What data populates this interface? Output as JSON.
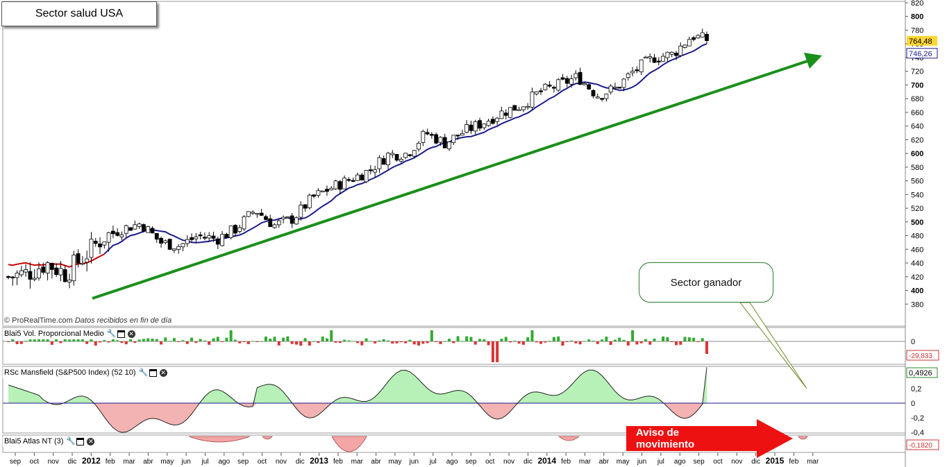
{
  "title": "Sector salud USA",
  "watermark": {
    "brand": "© ProRealTime.com",
    "note": "Datos recibidos en fin de día"
  },
  "callout": "Sector ganador",
  "alert_label": "Aviso de movimiento",
  "colors": {
    "up_candle": "#ffffff",
    "down_candle": "#000000",
    "ma_blue": "#1a1a8c",
    "ma_red": "#cc0000",
    "trend_green": "#1a8f1a",
    "hist_green": "#33aa33",
    "hist_red": "#dd3333",
    "area_green": "#aaeeaa",
    "area_red": "#f2a6a6",
    "price_badge": "#ffd633",
    "alert_red": "#ee1111"
  },
  "panels": {
    "volume": {
      "label": "Blai5 Vol. Proporcional Medio",
      "last_value": "-29,833",
      "zero_label": "0"
    },
    "mansfield": {
      "label": "RSc Mansfield (S&P500 Index) (52 10)",
      "last_value": "0,4926",
      "ticks": [
        "0,2",
        "0",
        "-0,2",
        "-0,4"
      ]
    },
    "atlas": {
      "label": "Blai5 Atlas NT (3)",
      "last_value": "-0,1820"
    }
  },
  "chart_data": {
    "type": "candlestick",
    "title": "Sector salud USA",
    "y_axis": {
      "min": 360,
      "max": 820,
      "ticks": [
        380,
        400,
        420,
        440,
        460,
        480,
        500,
        520,
        540,
        560,
        580,
        600,
        620,
        640,
        660,
        680,
        700,
        720,
        740,
        760,
        780,
        800,
        820
      ]
    },
    "price_labels": {
      "last": "764,48",
      "ma": "746,26"
    },
    "x_axis": {
      "labels": [
        "sep",
        "oct",
        "nov",
        "dic",
        "2012",
        "feb",
        "mar",
        "abr",
        "may",
        "jun",
        "jul",
        "ago",
        "sep",
        "oct",
        "nov",
        "dic",
        "2013",
        "feb",
        "mar",
        "abr",
        "may",
        "jun",
        "jul",
        "ago",
        "sep",
        "oct",
        "nov",
        "dic",
        "2014",
        "feb",
        "mar",
        "abr",
        "may",
        "jun",
        "jul",
        "ago",
        "sep",
        "oct",
        "nov",
        "dic",
        "2015",
        "feb",
        "mar"
      ],
      "bold": [
        "2012",
        "2013",
        "2014",
        "2015"
      ]
    },
    "close_path": [
      {
        "month": "sep 2011",
        "close": 420
      },
      {
        "month": "oct 2011",
        "close": 425
      },
      {
        "month": "nov 2011",
        "close": 440
      },
      {
        "month": "dic 2011",
        "close": 425
      },
      {
        "month": "ene 2012",
        "close": 450
      },
      {
        "month": "feb 2012",
        "close": 478
      },
      {
        "month": "mar 2012",
        "close": 490
      },
      {
        "month": "abr 2012",
        "close": 498
      },
      {
        "month": "may 2012",
        "close": 470
      },
      {
        "month": "jun 2012",
        "close": 465
      },
      {
        "month": "jul 2012",
        "close": 480
      },
      {
        "month": "ago 2012",
        "close": 475
      },
      {
        "month": "sep 2012",
        "close": 490
      },
      {
        "month": "oct 2012",
        "close": 518
      },
      {
        "month": "nov 2012",
        "close": 495
      },
      {
        "month": "dic 2012",
        "close": 505
      },
      {
        "month": "ene 2013",
        "close": 535
      },
      {
        "month": "feb 2013",
        "close": 550
      },
      {
        "month": "mar 2013",
        "close": 562
      },
      {
        "month": "abr 2013",
        "close": 575
      },
      {
        "month": "may 2013",
        "close": 598
      },
      {
        "month": "jun 2013",
        "close": 600
      },
      {
        "month": "jul 2013",
        "close": 630
      },
      {
        "month": "ago 2013",
        "close": 615
      },
      {
        "month": "sep 2013",
        "close": 632
      },
      {
        "month": "oct 2013",
        "close": 645
      },
      {
        "month": "nov 2013",
        "close": 660
      },
      {
        "month": "dic 2013",
        "close": 670
      },
      {
        "month": "ene 2014",
        "close": 690
      },
      {
        "month": "feb 2014",
        "close": 700
      },
      {
        "month": "mar 2014",
        "close": 712
      },
      {
        "month": "abr 2014",
        "close": 685
      },
      {
        "month": "may 2014",
        "close": 695
      },
      {
        "month": "jun 2014",
        "close": 722
      },
      {
        "month": "jul 2014",
        "close": 740
      },
      {
        "month": "ago 2014",
        "close": 745
      },
      {
        "month": "sep 2014",
        "close": 772
      },
      {
        "month": "oct 2014",
        "close": 764.48
      }
    ]
  }
}
